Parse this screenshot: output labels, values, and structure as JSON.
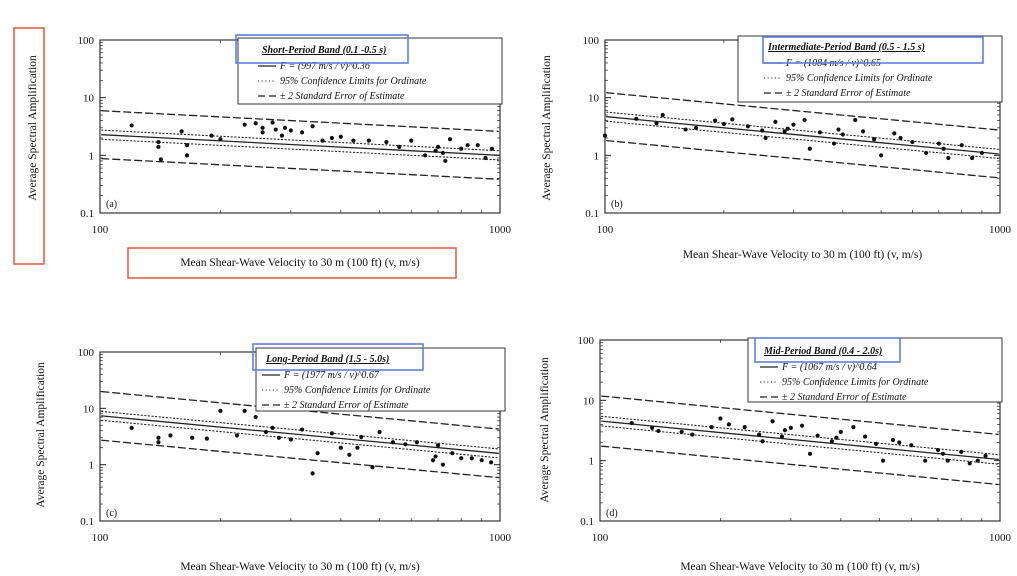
{
  "annotation_color": "#e8604c",
  "highlight_color": "#5b7fe0",
  "chart_data": [
    {
      "type": "scatter",
      "panel": "(a)",
      "band_label": "Short-Period Band (0.1 -0.5 s)",
      "legend": [
        "F = (997 m/s / v)^0.36",
        "95% Confidence Limits for Ordinate",
        "± 2 Standard Error of Estimate"
      ],
      "xlabel": "Mean Shear-Wave Velocity to 30 m (100 ft) (v, m/s)",
      "ylabel": "Average Spectral Amplification",
      "xscale": "log",
      "yscale": "log",
      "xlim": [
        100,
        1000
      ],
      "ylim": [
        0.1,
        100
      ],
      "xticks": [
        "100",
        "1000"
      ],
      "yticks": [
        "0.1",
        "1",
        "10",
        "100"
      ],
      "fit": {
        "coef": 997,
        "exp": 0.36
      },
      "conf_factor": 1.2,
      "se_factor": 2.6,
      "title_highlighted": true,
      "label_highlighted": true,
      "points": [
        [
          120,
          3.3
        ],
        [
          140,
          1.7
        ],
        [
          140,
          1.4
        ],
        [
          142,
          0.85
        ],
        [
          160,
          2.6
        ],
        [
          165,
          1.5
        ],
        [
          165,
          1.0
        ],
        [
          190,
          2.2
        ],
        [
          200,
          1.9
        ],
        [
          230,
          3.4
        ],
        [
          245,
          3.6
        ],
        [
          255,
          3.0
        ],
        [
          255,
          2.5
        ],
        [
          270,
          3.7
        ],
        [
          275,
          2.8
        ],
        [
          285,
          2.2
        ],
        [
          290,
          3.0
        ],
        [
          300,
          2.7
        ],
        [
          320,
          2.5
        ],
        [
          340,
          3.2
        ],
        [
          360,
          1.8
        ],
        [
          380,
          2.0
        ],
        [
          400,
          2.1
        ],
        [
          430,
          1.8
        ],
        [
          470,
          1.8
        ],
        [
          520,
          1.7
        ],
        [
          560,
          1.4
        ],
        [
          600,
          1.8
        ],
        [
          650,
          1.0
        ],
        [
          690,
          1.2
        ],
        [
          700,
          1.4
        ],
        [
          720,
          1.1
        ],
        [
          730,
          0.8
        ],
        [
          750,
          1.9
        ],
        [
          800,
          1.3
        ],
        [
          830,
          1.5
        ],
        [
          880,
          1.5
        ],
        [
          920,
          0.9
        ],
        [
          955,
          1.3
        ]
      ]
    },
    {
      "type": "scatter",
      "panel": "(b)",
      "band_label": "Intermediate-Period Band (0.5 - 1.5 s)",
      "legend": [
        "F = (1084 m/s / v)^0.65",
        "95% Confidence Limits for Ordinate",
        "± 2 Standard Error of Estimate"
      ],
      "xlabel": "Mean Shear-Wave Velocity to 30 m (100 ft) (v, m/s)",
      "ylabel": "Average Spectral Amplification",
      "xscale": "log",
      "yscale": "log",
      "xlim": [
        100,
        1000
      ],
      "ylim": [
        0.1,
        100
      ],
      "xticks": [
        "100",
        "1000"
      ],
      "yticks": [
        "0.1",
        "1",
        "10",
        "100"
      ],
      "fit": {
        "coef": 1084,
        "exp": 0.65
      },
      "conf_factor": 1.2,
      "se_factor": 2.6,
      "title_highlighted": true,
      "label_highlighted": false,
      "points": [
        [
          100,
          2.2
        ],
        [
          120,
          4.3
        ],
        [
          135,
          3.6
        ],
        [
          140,
          5.0
        ],
        [
          160,
          2.8
        ],
        [
          170,
          3.0
        ],
        [
          190,
          4.0
        ],
        [
          200,
          3.5
        ],
        [
          210,
          4.2
        ],
        [
          230,
          3.2
        ],
        [
          250,
          2.7
        ],
        [
          255,
          2.0
        ],
        [
          270,
          3.8
        ],
        [
          285,
          2.6
        ],
        [
          290,
          2.9
        ],
        [
          300,
          3.4
        ],
        [
          320,
          4.1
        ],
        [
          330,
          1.3
        ],
        [
          350,
          2.5
        ],
        [
          380,
          1.6
        ],
        [
          390,
          2.8
        ],
        [
          400,
          2.3
        ],
        [
          430,
          4.1
        ],
        [
          450,
          2.6
        ],
        [
          480,
          1.9
        ],
        [
          500,
          1.0
        ],
        [
          540,
          2.4
        ],
        [
          560,
          2.0
        ],
        [
          600,
          1.7
        ],
        [
          650,
          1.1
        ],
        [
          700,
          1.6
        ],
        [
          720,
          1.3
        ],
        [
          740,
          0.9
        ],
        [
          800,
          1.5
        ],
        [
          850,
          0.9
        ],
        [
          900,
          1.1
        ]
      ]
    },
    {
      "type": "scatter",
      "panel": "(c)",
      "band_label": "Long-Period Band (1.5 - 5.0s)",
      "legend": [
        "F = (1977 m/s / v)^0.67",
        "95% Confidence Limits for Ordinate",
        "± 2 Standard Error of Estimate"
      ],
      "xlabel": "Mean Shear-Wave Velocity to 30 m (100 ft) (v, m/s)",
      "ylabel": "Average Spectral Amplification",
      "xscale": "log",
      "yscale": "log",
      "xlim": [
        100,
        1000
      ],
      "ylim": [
        0.1,
        100
      ],
      "xticks": [
        "100",
        "1000"
      ],
      "yticks": [
        "0.1",
        "1",
        "10",
        "100"
      ],
      "fit": {
        "coef": 1977,
        "exp": 0.67
      },
      "conf_factor": 1.2,
      "se_factor": 2.7,
      "title_highlighted": true,
      "label_highlighted": false,
      "points": [
        [
          120,
          4.5
        ],
        [
          140,
          3.0
        ],
        [
          140,
          2.5
        ],
        [
          150,
          3.3
        ],
        [
          170,
          3.0
        ],
        [
          185,
          2.9
        ],
        [
          200,
          9.0
        ],
        [
          220,
          3.3
        ],
        [
          230,
          9.0
        ],
        [
          245,
          7.0
        ],
        [
          260,
          3.8
        ],
        [
          270,
          4.5
        ],
        [
          280,
          3.0
        ],
        [
          300,
          2.8
        ],
        [
          320,
          4.2
        ],
        [
          340,
          0.7
        ],
        [
          350,
          1.6
        ],
        [
          380,
          3.6
        ],
        [
          400,
          2.0
        ],
        [
          420,
          1.5
        ],
        [
          440,
          2.0
        ],
        [
          450,
          3.1
        ],
        [
          480,
          0.9
        ],
        [
          500,
          3.8
        ],
        [
          540,
          2.5
        ],
        [
          580,
          2.3
        ],
        [
          620,
          2.5
        ],
        [
          680,
          1.2
        ],
        [
          690,
          1.4
        ],
        [
          700,
          2.2
        ],
        [
          720,
          1.0
        ],
        [
          760,
          1.6
        ],
        [
          800,
          1.3
        ],
        [
          850,
          1.3
        ],
        [
          900,
          1.2
        ],
        [
          950,
          1.1
        ]
      ]
    },
    {
      "type": "scatter",
      "panel": "(d)",
      "band_label": "Mid-Period Band (0.4 - 2.0s)",
      "legend": [
        "F = (1067 m/s / v)^0.64",
        "95% Confidence Limits for Ordinate",
        "± 2 Standard Error of Estimate"
      ],
      "xlabel": "Mean Shear-Wave Velocity to 30 m (100 ft) (v, m/s)",
      "ylabel": "Average Spectral Amplification",
      "xscale": "log",
      "yscale": "log",
      "xlim": [
        100,
        1000
      ],
      "ylim": [
        0.1,
        100
      ],
      "xticks": [
        "100",
        "1000"
      ],
      "yticks": [
        "0.1",
        "1",
        "10",
        "100"
      ],
      "fit": {
        "coef": 1067,
        "exp": 0.64
      },
      "conf_factor": 1.2,
      "se_factor": 2.6,
      "title_highlighted": true,
      "label_highlighted": false,
      "points": [
        [
          120,
          4.2
        ],
        [
          135,
          3.5
        ],
        [
          140,
          3.1
        ],
        [
          160,
          3.0
        ],
        [
          170,
          2.7
        ],
        [
          190,
          3.6
        ],
        [
          200,
          5.0
        ],
        [
          210,
          4.0
        ],
        [
          230,
          3.6
        ],
        [
          250,
          2.7
        ],
        [
          255,
          2.1
        ],
        [
          270,
          4.5
        ],
        [
          285,
          2.5
        ],
        [
          290,
          3.2
        ],
        [
          300,
          3.5
        ],
        [
          320,
          3.8
        ],
        [
          335,
          1.3
        ],
        [
          350,
          2.6
        ],
        [
          380,
          2.1
        ],
        [
          390,
          2.4
        ],
        [
          400,
          3.0
        ],
        [
          430,
          3.6
        ],
        [
          460,
          2.5
        ],
        [
          490,
          1.9
        ],
        [
          510,
          1.0
        ],
        [
          540,
          2.2
        ],
        [
          560,
          2.0
        ],
        [
          600,
          1.8
        ],
        [
          650,
          1.0
        ],
        [
          700,
          1.5
        ],
        [
          720,
          1.3
        ],
        [
          740,
          1.0
        ],
        [
          800,
          1.4
        ],
        [
          840,
          0.9
        ],
        [
          880,
          1.0
        ],
        [
          920,
          1.2
        ]
      ]
    }
  ]
}
